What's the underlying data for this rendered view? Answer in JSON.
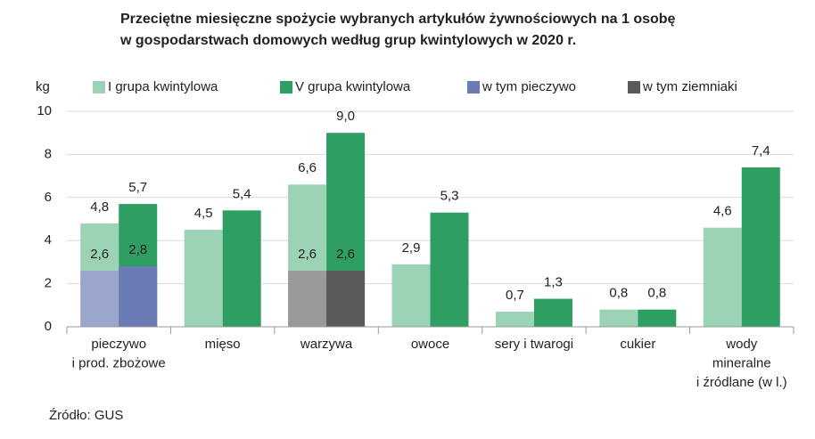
{
  "chart_data": {
    "type": "bar",
    "title": [
      "Przeciętne miesięczne spożycie wybranych artykułów żywnościowych na 1 osobę",
      "w gospodarstwach domowych według grup kwintylowych w 2020 r."
    ],
    "y_label": "kg",
    "categories": [
      [
        "pieczywo",
        "i prod. zbożowe"
      ],
      [
        "mięso"
      ],
      [
        "warzywa"
      ],
      [
        "owoce"
      ],
      [
        "sery i twarogi"
      ],
      [
        "cukier"
      ],
      [
        "wody",
        "mineralne",
        "i źródlane (w l.)"
      ]
    ],
    "series": [
      {
        "name": "I grupa kwintylowa",
        "color": "#9dd3b5",
        "values": [
          4.8,
          4.5,
          6.6,
          2.9,
          0.7,
          0.8,
          4.6
        ],
        "value_labels": [
          "4,8",
          "4,5",
          "6,6",
          "2,9",
          "0,7",
          "0,8",
          "4,6"
        ]
      },
      {
        "name": "V grupa kwintylowa",
        "color": "#2f9e62",
        "values": [
          5.7,
          5.4,
          9.0,
          5.3,
          1.3,
          0.8,
          7.4
        ],
        "value_labels": [
          "5,7",
          "5,4",
          "9,0",
          "5,3",
          "1,3",
          "0,8",
          "7,4"
        ]
      },
      {
        "name": "w tym pieczywo",
        "color": "#6b7bb5",
        "colors": [
          "#9ba6cc",
          "#6b7bb5"
        ],
        "values": [
          [
            2.6,
            null,
            null,
            null,
            null,
            null,
            null
          ],
          [
            2.8,
            null,
            null,
            null,
            null,
            null,
            null
          ]
        ],
        "value_labels": [
          [
            "2,6",
            null,
            null,
            null,
            null,
            null,
            null
          ],
          [
            "2,8",
            null,
            null,
            null,
            null,
            null,
            null
          ]
        ]
      },
      {
        "name": "w tym ziemniaki",
        "color": "#5a5a5a",
        "colors": [
          "#9a9a9a",
          "#5a5a5a"
        ],
        "values": [
          [
            null,
            null,
            2.6,
            null,
            null,
            null,
            null
          ],
          [
            null,
            null,
            2.6,
            null,
            null,
            null,
            null
          ]
        ],
        "value_labels": [
          [
            null,
            null,
            "2,6",
            null,
            null,
            null,
            null
          ],
          [
            null,
            null,
            "2,6",
            null,
            null,
            null,
            null
          ]
        ]
      }
    ],
    "ylim": [
      0,
      10
    ],
    "yticks": [
      0,
      2,
      4,
      6,
      8,
      10
    ],
    "grid": true,
    "source": "Źródło: GUS"
  }
}
